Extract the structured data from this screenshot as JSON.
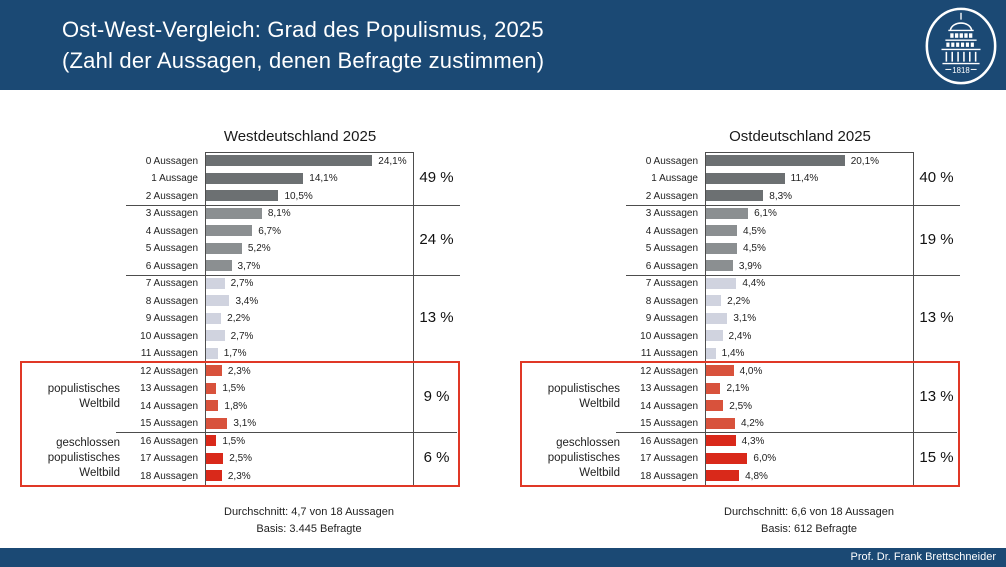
{
  "header": {
    "title_line1": "Ost-West-Vergleich: Grad des Populismus, 2025",
    "title_line2": "(Zahl der Aussagen, denen Befragte zustimmen)",
    "logo_year": "1818"
  },
  "footer": {
    "credit": "Prof. Dr. Frank Brettschneider"
  },
  "colors": {
    "header_bg": "#1b4974",
    "highlight_border": "#e03826",
    "line": "#4d4d4d",
    "bar_dark_gray": "#6c7072",
    "bar_mid_gray": "#8b8f91",
    "bar_lavender": "#d0d3df",
    "bar_light_red": "#d8523c",
    "bar_strong_red": "#d9291a"
  },
  "chart_data": [
    {
      "type": "bar",
      "orientation": "horizontal",
      "title": "Westdeutschland 2025",
      "xlim": [
        0,
        30
      ],
      "grid": false,
      "legend": false,
      "categories": [
        "0 Aussagen",
        "1 Aussage",
        "2 Aussagen",
        "3 Aussagen",
        "4 Aussagen",
        "5 Aussagen",
        "6 Aussagen",
        "7 Aussagen",
        "8 Aussagen",
        "9 Aussagen",
        "10 Aussagen",
        "11 Aussagen",
        "12 Aussagen",
        "13 Aussagen",
        "14 Aussagen",
        "15 Aussagen",
        "16 Aussagen",
        "17 Aussagen",
        "18 Aussagen"
      ],
      "values": [
        24.1,
        14.1,
        10.5,
        8.1,
        6.7,
        5.2,
        3.7,
        2.7,
        3.4,
        2.2,
        2.7,
        1.7,
        2.3,
        1.5,
        1.8,
        3.1,
        1.5,
        2.5,
        2.3
      ],
      "value_labels": [
        "24,1%",
        "14,1%",
        "10,5%",
        "8,1%",
        "6,7%",
        "5,2%",
        "3,7%",
        "2,7%",
        "3,4%",
        "2,2%",
        "2,7%",
        "1,7%",
        "2,3%",
        "1,5%",
        "1,8%",
        "3,1%",
        "1,5%",
        "2,5%",
        "2,3%"
      ],
      "groups": [
        {
          "rows": [
            0,
            2
          ],
          "label": "49 %",
          "color_key": "bar_dark_gray"
        },
        {
          "rows": [
            3,
            6
          ],
          "label": "24 %",
          "color_key": "bar_mid_gray"
        },
        {
          "rows": [
            7,
            11
          ],
          "label": "13 %",
          "color_key": "bar_lavender"
        },
        {
          "rows": [
            12,
            15
          ],
          "label": "9 %",
          "color_key": "bar_light_red",
          "annotation": "populistisches\nWeltbild"
        },
        {
          "rows": [
            16,
            18
          ],
          "label": "6 %",
          "color_key": "bar_strong_red",
          "annotation": "geschlossen\npopulistisches\nWeltbild"
        }
      ],
      "highlight_box_groups": [
        3,
        4
      ],
      "footnotes": [
        "Durchschnitt: 4,7 von 18 Aussagen",
        "Basis: 3.445 Befragte"
      ]
    },
    {
      "type": "bar",
      "orientation": "horizontal",
      "title": "Ostdeutschland 2025",
      "xlim": [
        0,
        30
      ],
      "grid": false,
      "legend": false,
      "categories": [
        "0 Aussagen",
        "1 Aussage",
        "2 Aussagen",
        "3 Aussagen",
        "4 Aussagen",
        "5 Aussagen",
        "6 Aussagen",
        "7 Aussagen",
        "8 Aussagen",
        "9 Aussagen",
        "10 Aussagen",
        "11 Aussagen",
        "12 Aussagen",
        "13 Aussagen",
        "14 Aussagen",
        "15 Aussagen",
        "16 Aussagen",
        "17 Aussagen",
        "18 Aussagen"
      ],
      "values": [
        20.1,
        11.4,
        8.3,
        6.1,
        4.5,
        4.5,
        3.9,
        4.4,
        2.2,
        3.1,
        2.4,
        1.4,
        4.0,
        2.1,
        2.5,
        4.2,
        4.3,
        6.0,
        4.8
      ],
      "value_labels": [
        "20,1%",
        "11,4%",
        "8,3%",
        "6,1%",
        "4,5%",
        "4,5%",
        "3,9%",
        "4,4%",
        "2,2%",
        "3,1%",
        "2,4%",
        "1,4%",
        "4,0%",
        "2,1%",
        "2,5%",
        "4,2%",
        "4,3%",
        "6,0%",
        "4,8%"
      ],
      "groups": [
        {
          "rows": [
            0,
            2
          ],
          "label": "40 %",
          "color_key": "bar_dark_gray"
        },
        {
          "rows": [
            3,
            6
          ],
          "label": "19 %",
          "color_key": "bar_mid_gray"
        },
        {
          "rows": [
            7,
            11
          ],
          "label": "13 %",
          "color_key": "bar_lavender"
        },
        {
          "rows": [
            12,
            15
          ],
          "label": "13 %",
          "color_key": "bar_light_red",
          "annotation": "populistisches\nWeltbild"
        },
        {
          "rows": [
            16,
            18
          ],
          "label": "15 %",
          "color_key": "bar_strong_red",
          "annotation": "geschlossen\npopulistisches\nWeltbild"
        }
      ],
      "highlight_box_groups": [
        3,
        4
      ],
      "footnotes": [
        "Durchschnitt: 6,6 von 18 Aussagen",
        "Basis: 612 Befragte"
      ]
    }
  ]
}
